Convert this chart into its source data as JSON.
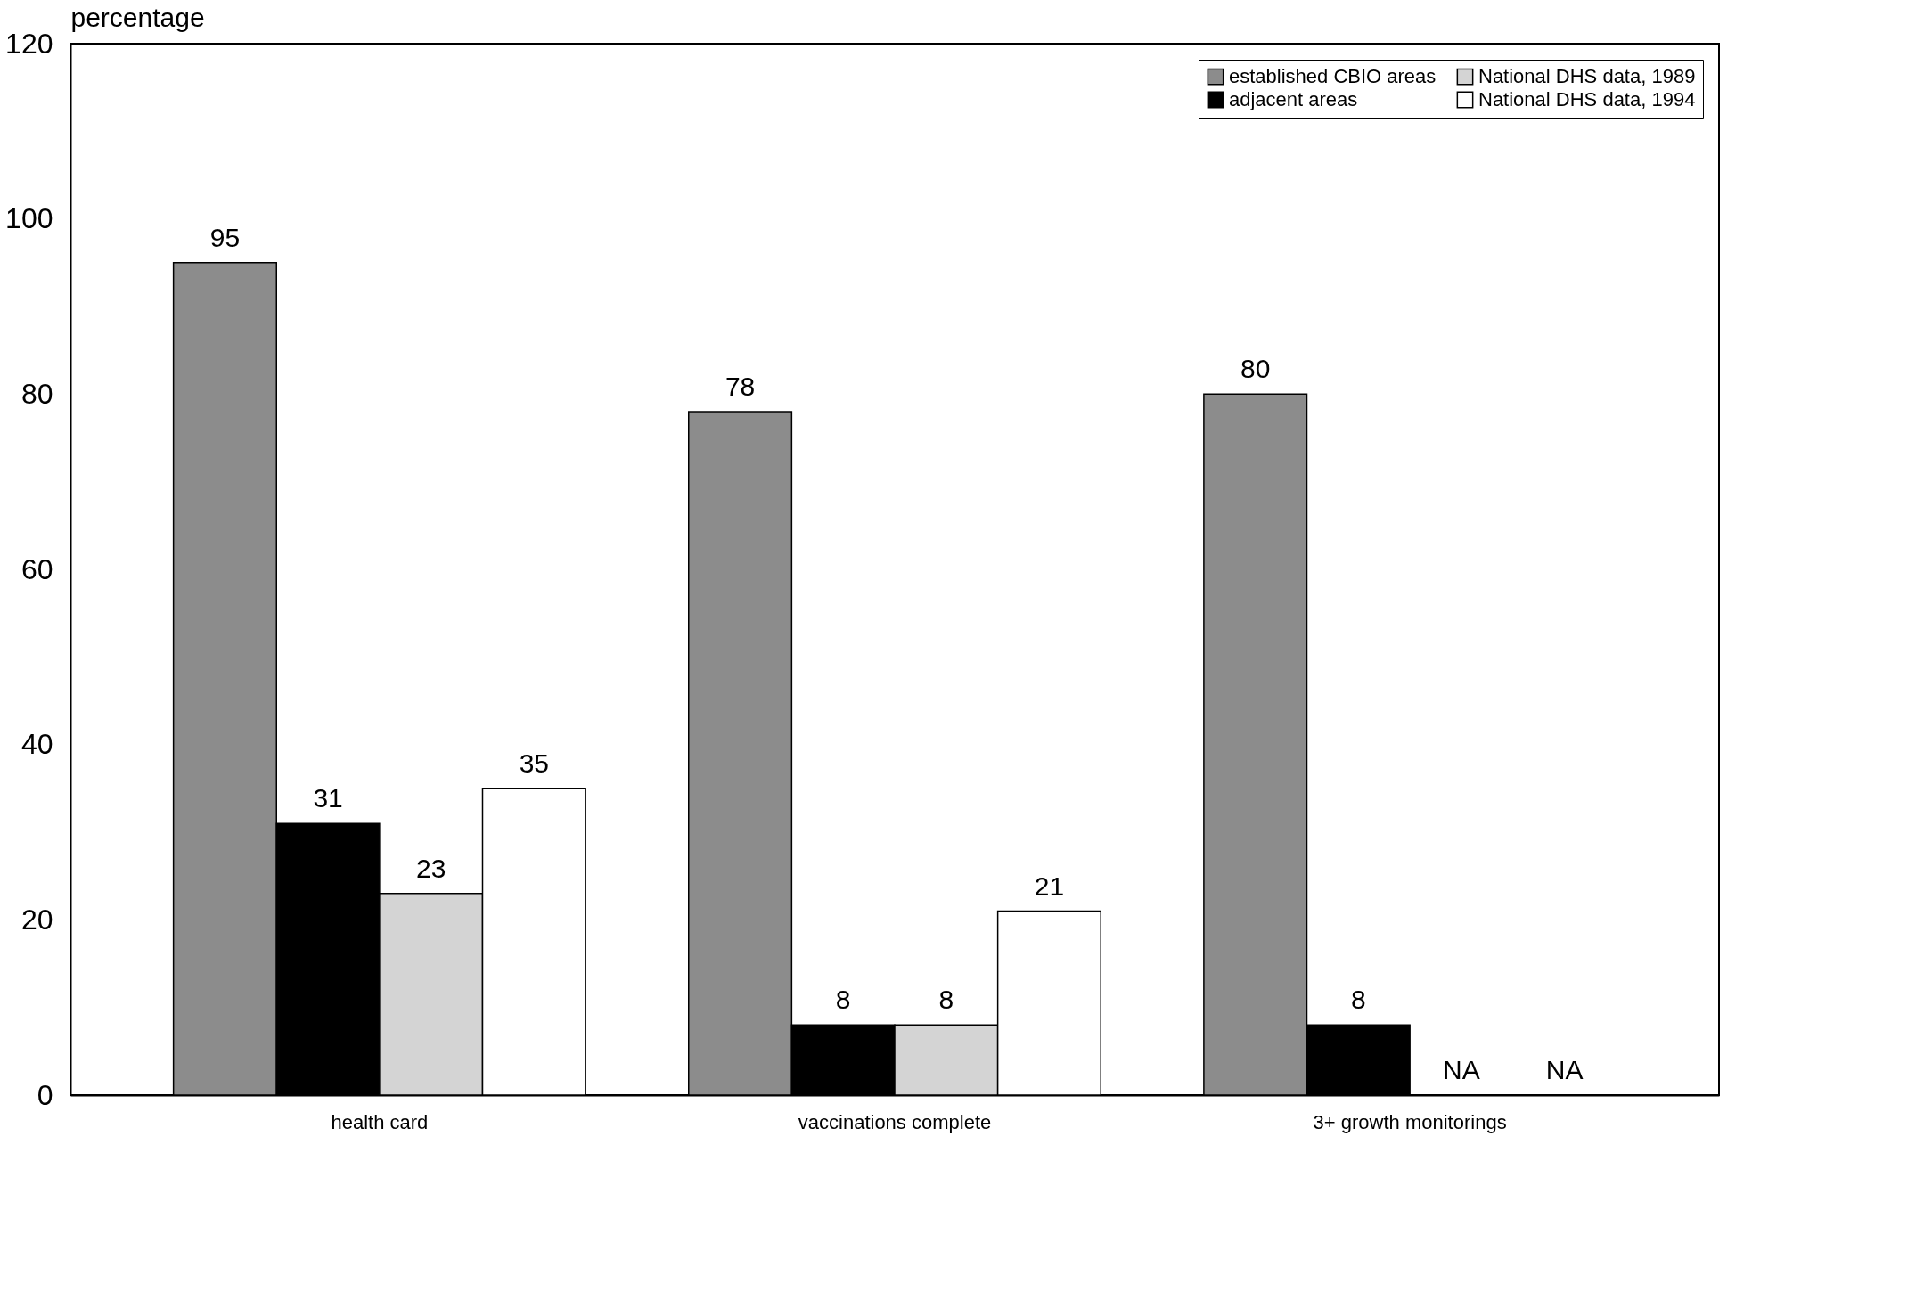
{
  "chart_data": {
    "type": "bar",
    "ylabel": "percentage",
    "categories": [
      "health card",
      "vaccinations complete",
      "3+ growth monitorings"
    ],
    "series": [
      {
        "name": "established CBIO areas",
        "color": "#8c8c8c",
        "values": [
          95,
          78,
          80
        ],
        "value_labels": [
          "95",
          "78",
          "80"
        ]
      },
      {
        "name": "adjacent areas",
        "color": "#000000",
        "values": [
          31,
          8,
          8
        ],
        "value_labels": [
          "31",
          "8",
          "8"
        ]
      },
      {
        "name": "National DHS data, 1989",
        "color": "#d4d4d4",
        "values": [
          23,
          8,
          null
        ],
        "value_labels": [
          "23",
          "8",
          "NA"
        ]
      },
      {
        "name": "National DHS data, 1994",
        "color": "#ffffff",
        "values": [
          35,
          21,
          null
        ],
        "value_labels": [
          "35",
          "21",
          "NA"
        ]
      }
    ],
    "ylim": [
      0,
      120
    ],
    "yticks": [
      0,
      20,
      40,
      60,
      80,
      100,
      120
    ],
    "grid": false,
    "legend": "top right"
  }
}
